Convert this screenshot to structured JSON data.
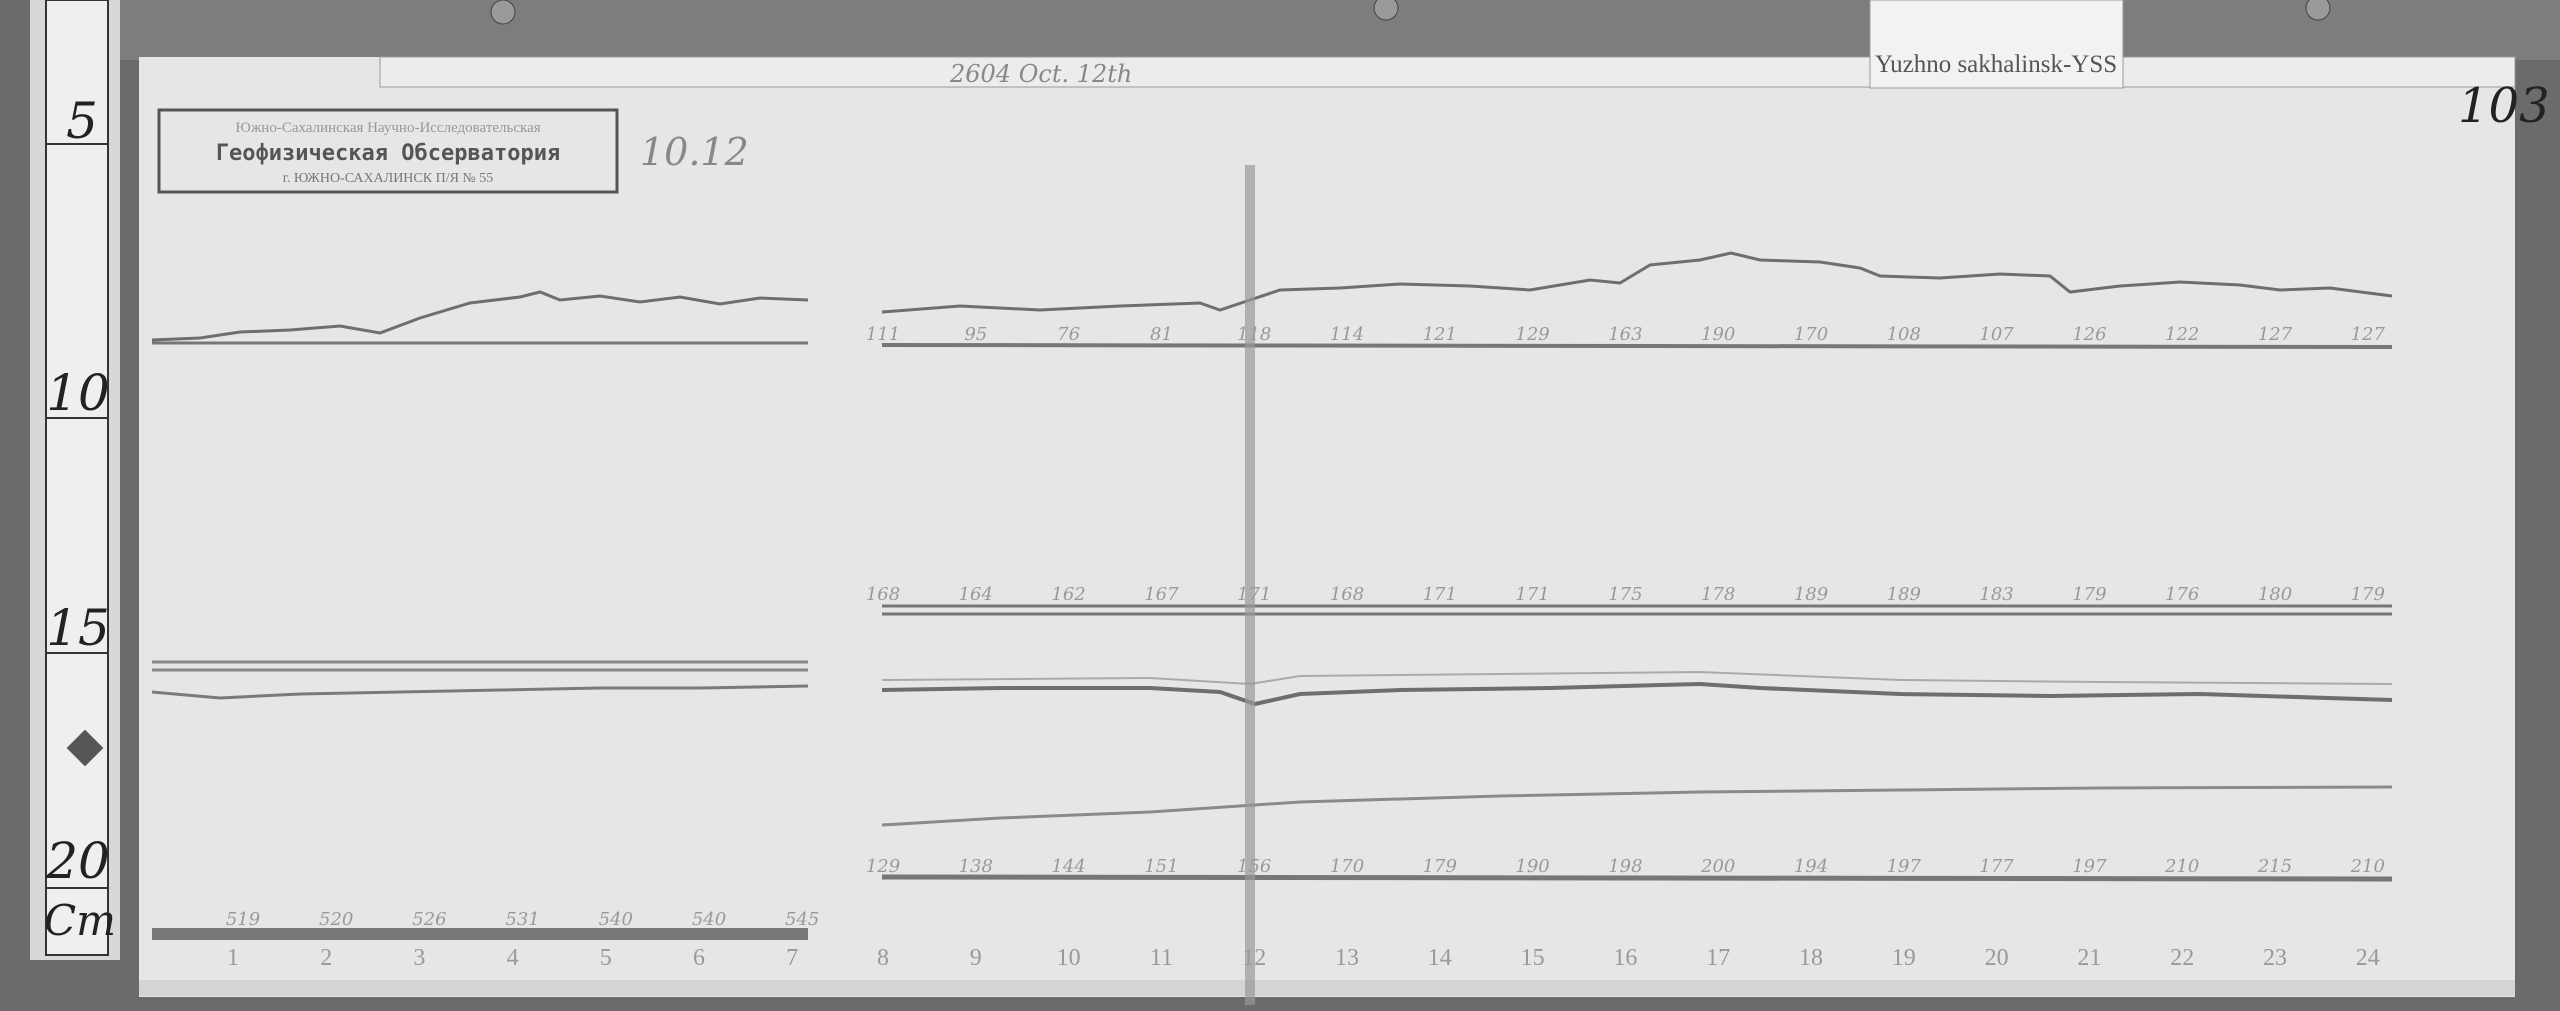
{
  "station_card": {
    "label": "Yuzhno sakhalinsk-YSS"
  },
  "sheet_number": "103",
  "date_note": "10.12",
  "header_note": "2604 Oct. 12th",
  "stamp": {
    "line1": "Южно-Сахалинская Научно-Исследовательская",
    "line2": "Геофизическая Обсерватория",
    "line3": "г. ЮЖНО-САХАЛИНСК П/Я № 55"
  },
  "ruler": {
    "marks": [
      "5",
      "10",
      "15",
      "20"
    ],
    "unit": "Cm"
  },
  "hour_axis": {
    "left_segment": [
      "1",
      "2",
      "3",
      "4",
      "5",
      "6",
      "7"
    ],
    "right_segment": [
      "8",
      "9",
      "10",
      "11",
      "12",
      "13",
      "14",
      "15",
      "16",
      "17",
      "18",
      "19",
      "20",
      "21",
      "22",
      "23",
      "24"
    ]
  },
  "baseline_labels": {
    "top_right": [
      "111",
      "95",
      "76",
      "81",
      "118",
      "114",
      "121",
      "129",
      "163",
      "190",
      "170",
      "108",
      "107",
      "126",
      "122",
      "127",
      "127"
    ],
    "middle_right": [
      "168",
      "164",
      "162",
      "167",
      "171",
      "168",
      "171",
      "171",
      "175",
      "178",
      "189",
      "189",
      "183",
      "179",
      "176",
      "180",
      "179"
    ],
    "bottom_right": [
      "129",
      "138",
      "144",
      "151",
      "156",
      "170",
      "179",
      "190",
      "198",
      "200",
      "194",
      "197",
      "177",
      "197",
      "210",
      "215",
      "210"
    ],
    "bottom_left": [
      "519",
      "520",
      "526",
      "531",
      "540",
      "540",
      "545"
    ]
  },
  "colors": {
    "paper": "#e6e6e6",
    "trace": "#6e6e6e",
    "frame": "#6a6a6a"
  }
}
